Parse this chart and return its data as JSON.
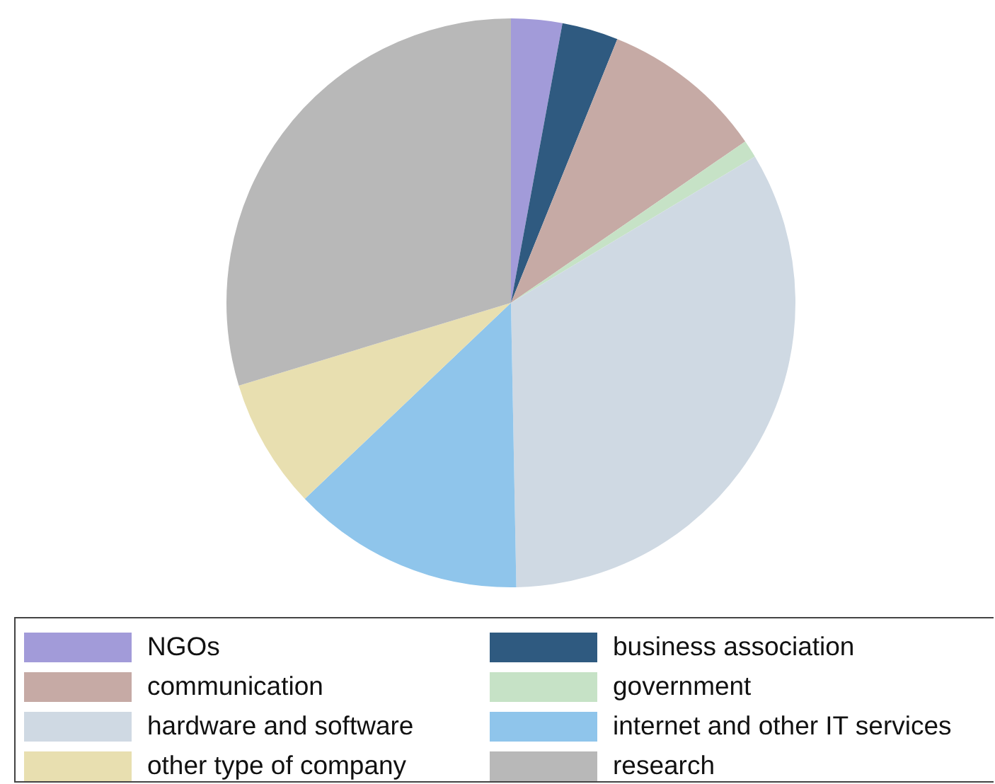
{
  "chart_data": {
    "type": "pie",
    "categories": [
      "NGOs",
      "business association",
      "communication",
      "government",
      "hardware and software",
      "internet and other IT services",
      "other type of company",
      "research"
    ],
    "values": [
      2.9,
      3.2,
      9.3,
      1,
      33.3,
      13.2,
      7.4,
      29.7
    ],
    "colors": [
      "#a29bd9",
      "#2f5a80",
      "#c6aaa5",
      "#c6e2c6",
      "#cfd9e3",
      "#8fc5eb",
      "#e8dfb0",
      "#b8b8b8"
    ],
    "legend": "bottom"
  }
}
